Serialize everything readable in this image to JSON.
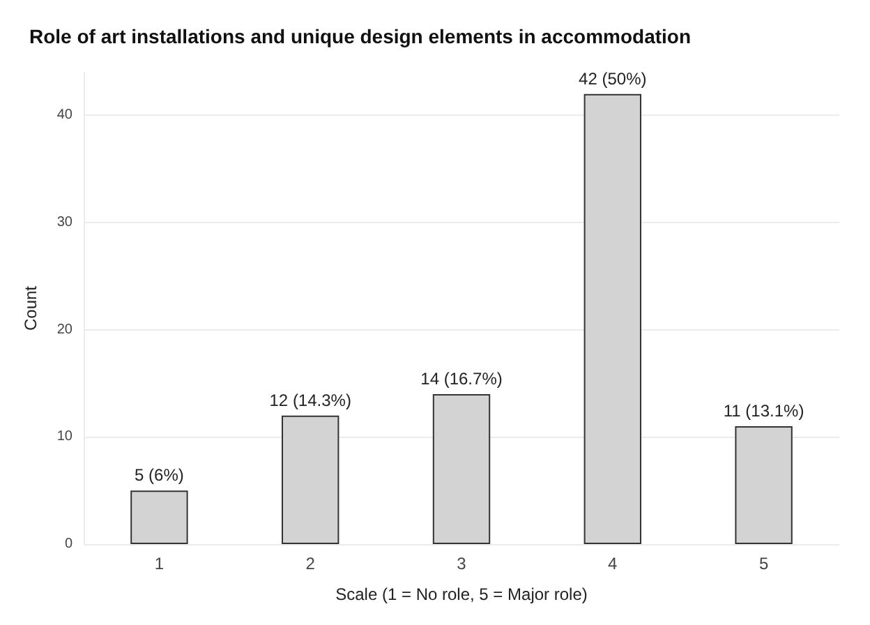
{
  "chart_data": {
    "type": "bar",
    "title": "Role of art installations and unique design elements in accommodation",
    "xlabel": "Scale (1 = No role, 5 = Major role)",
    "ylabel": "Count",
    "categories": [
      "1",
      "2",
      "3",
      "4",
      "5"
    ],
    "values": [
      5,
      12,
      14,
      42,
      11
    ],
    "value_labels": [
      "5 (6%)",
      "12 (14.3%)",
      "14 (16.7%)",
      "42 (50%)",
      "11 (13.1%)"
    ],
    "color": "#d3d3d3",
    "ylim": [
      0,
      44
    ],
    "yticks": [
      0,
      10,
      20,
      30,
      40
    ],
    "grid": "y"
  }
}
